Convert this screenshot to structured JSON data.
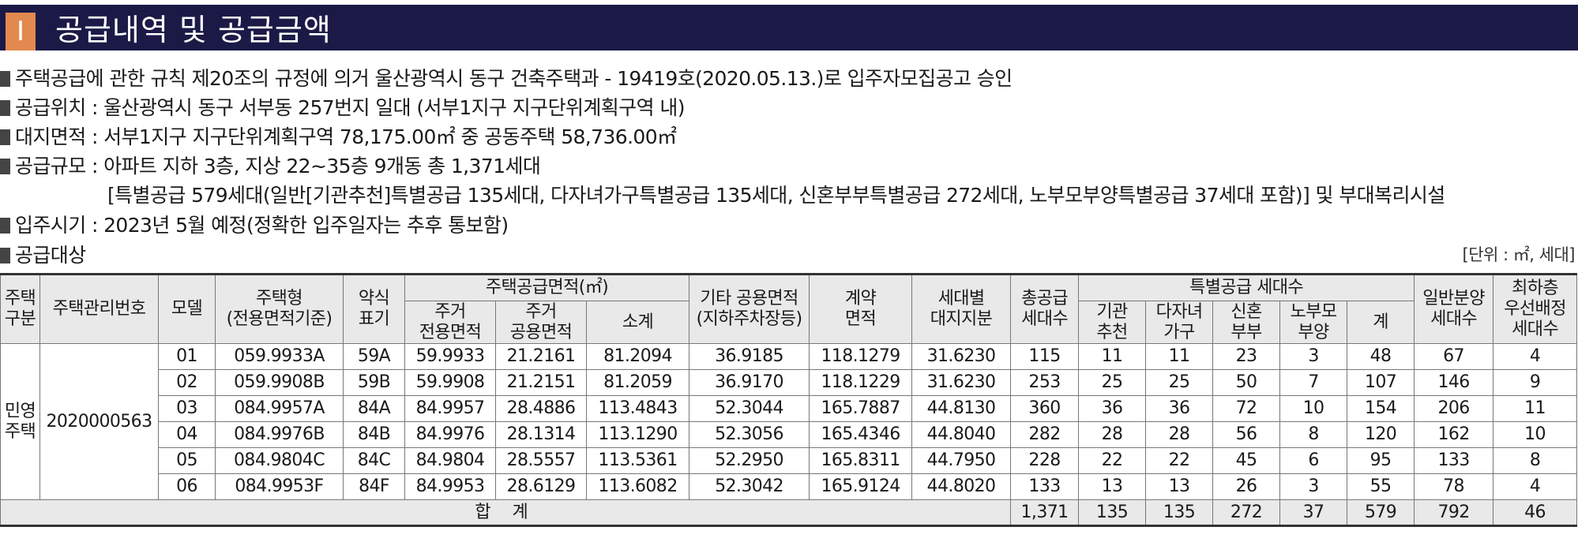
{
  "header": {
    "mark": "I",
    "title": "공급내역 및 공급금액"
  },
  "info": [
    "주택공급에 관한 규칙 제20조의 규정에 의거 울산광역시 동구 건축주택과 - 19419호(2020.05.13.)로 입주자모집공고 승인",
    "공급위치 : 울산광역시 동구 서부동 257번지 일대 (서부1지구 지구단위계획구역 내)",
    "대지면적 : 서부1지구 지구단위계획구역 78,175.00㎡ 중 공동주택 58,736.00㎡",
    "공급규모 : 아파트 지하 3층, 지상 22~35층 9개동 총 1,371세대",
    "[특별공급 579세대(일반[기관추천]특별공급 135세대, 다자녀가구특별공급 135세대, 신혼부부특별공급 272세대, 노부모부양특별공급 37세대 포함)] 및 부대복리시설",
    "입주시기 : 2023년 5월 예정(정확한 입주일자는 추후 통보함)",
    "공급대상"
  ],
  "unit_note": "[단위 : ㎡, 세대]",
  "table": {
    "headers": {
      "type_1": "주택",
      "type_2": "구분",
      "mgmt_no": "주택관리번호",
      "model": "모델",
      "house_type_1": "주택형",
      "house_type_2": "(전용면적기준)",
      "abbr_1": "약식",
      "abbr_2": "표기",
      "area_group": "주택공급면적(㎡)",
      "excl_1": "주거",
      "excl_2": "전용면적",
      "common_1": "주거",
      "common_2": "공용면적",
      "subtotal": "소계",
      "other_1": "기타 공용면적",
      "other_2": "(지하주차장등)",
      "contract_1": "계약",
      "contract_2": "면적",
      "land_1": "세대별",
      "land_2": "대지지분",
      "total_1": "총공급",
      "total_2": "세대수",
      "special_group": "특별공급 세대수",
      "inst_1": "기관",
      "inst_2": "추천",
      "multi_1": "다자녀",
      "multi_2": "가구",
      "newly_1": "신혼",
      "newly_2": "부부",
      "elder_1": "노부모",
      "elder_2": "부양",
      "sp_sum": "계",
      "general_1": "일반분양",
      "general_2": "세대수",
      "lowest_1": "최하층",
      "lowest_2": "우선배정",
      "lowest_3": "세대수"
    },
    "type_label_1": "민영",
    "type_label_2": "주택",
    "mgmt_no": "2020000563",
    "rows": [
      {
        "model": "01",
        "house_type": "059.9933A",
        "abbr": "59A",
        "excl": "59.9933",
        "common": "21.2161",
        "subtotal": "81.2094",
        "other": "36.9185",
        "contract": "118.1279",
        "land": "31.6230",
        "total": "115",
        "inst": "11",
        "multi": "11",
        "newly": "23",
        "elder": "3",
        "sp_sum": "48",
        "general": "67",
        "lowest": "4"
      },
      {
        "model": "02",
        "house_type": "059.9908B",
        "abbr": "59B",
        "excl": "59.9908",
        "common": "21.2151",
        "subtotal": "81.2059",
        "other": "36.9170",
        "contract": "118.1229",
        "land": "31.6230",
        "total": "253",
        "inst": "25",
        "multi": "25",
        "newly": "50",
        "elder": "7",
        "sp_sum": "107",
        "general": "146",
        "lowest": "9"
      },
      {
        "model": "03",
        "house_type": "084.9957A",
        "abbr": "84A",
        "excl": "84.9957",
        "common": "28.4886",
        "subtotal": "113.4843",
        "other": "52.3044",
        "contract": "165.7887",
        "land": "44.8130",
        "total": "360",
        "inst": "36",
        "multi": "36",
        "newly": "72",
        "elder": "10",
        "sp_sum": "154",
        "general": "206",
        "lowest": "11"
      },
      {
        "model": "04",
        "house_type": "084.9976B",
        "abbr": "84B",
        "excl": "84.9976",
        "common": "28.1314",
        "subtotal": "113.1290",
        "other": "52.3056",
        "contract": "165.4346",
        "land": "44.8040",
        "total": "282",
        "inst": "28",
        "multi": "28",
        "newly": "56",
        "elder": "8",
        "sp_sum": "120",
        "general": "162",
        "lowest": "10"
      },
      {
        "model": "05",
        "house_type": "084.9804C",
        "abbr": "84C",
        "excl": "84.9804",
        "common": "28.5557",
        "subtotal": "113.5361",
        "other": "52.2950",
        "contract": "165.8311",
        "land": "44.7950",
        "total": "228",
        "inst": "22",
        "multi": "22",
        "newly": "45",
        "elder": "6",
        "sp_sum": "95",
        "general": "133",
        "lowest": "8"
      },
      {
        "model": "06",
        "house_type": "084.9953F",
        "abbr": "84F",
        "excl": "84.9953",
        "common": "28.6129",
        "subtotal": "113.6082",
        "other": "52.3042",
        "contract": "165.9124",
        "land": "44.8020",
        "total": "133",
        "inst": "13",
        "multi": "13",
        "newly": "26",
        "elder": "3",
        "sp_sum": "55",
        "general": "78",
        "lowest": "4"
      }
    ],
    "totals": {
      "label": "합 계",
      "total": "1,371",
      "inst": "135",
      "multi": "135",
      "newly": "272",
      "elder": "37",
      "sp_sum": "579",
      "general": "792",
      "lowest": "46"
    }
  },
  "colors": {
    "header_bg": "#1b1a47",
    "header_accent": "#e2894f",
    "table_header_bg": "#e9e9e9"
  }
}
